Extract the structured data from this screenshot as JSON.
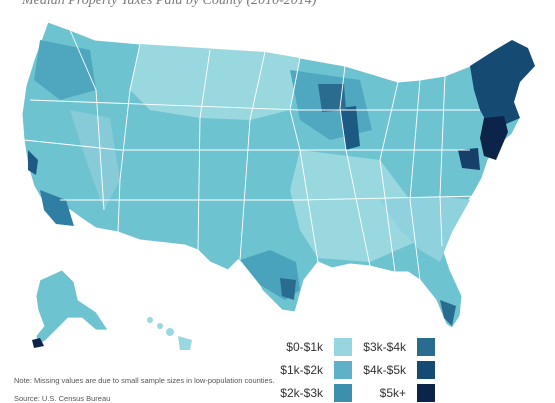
{
  "title": "Median Property Taxes Paid by County (2010-2014)",
  "legend": [
    {
      "label": "$0-$1k",
      "color": "#97d6e0"
    },
    {
      "label": "$1k-$2k",
      "color": "#5fb1c7"
    },
    {
      "label": "$2k-$3k",
      "color": "#3d8fae"
    },
    {
      "label": "$3k-$4k",
      "color": "#2a6b90"
    },
    {
      "label": "$4k-$5k",
      "color": "#154a73"
    },
    {
      "label": "$5k+",
      "color": "#0c2449"
    }
  ],
  "note": "Note: Missing values are due to small sample sizes in low-population counties.",
  "source": "Source: U.S. Census Bureau"
}
